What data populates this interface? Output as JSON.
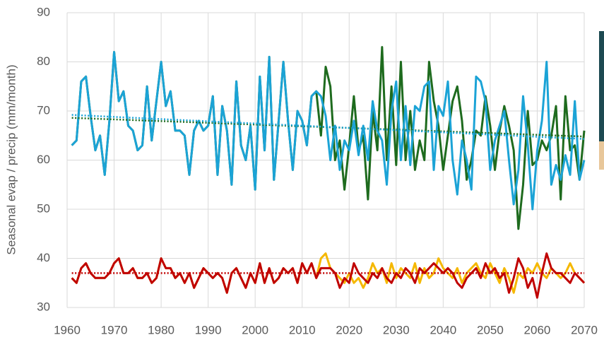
{
  "chart_data": {
    "type": "line",
    "y_label": "Seasonal evap / precip (mm/month)",
    "x": [
      1961,
      1962,
      1963,
      1964,
      1965,
      1966,
      1967,
      1968,
      1969,
      1970,
      1971,
      1972,
      1973,
      1974,
      1975,
      1976,
      1977,
      1978,
      1979,
      1980,
      1981,
      1982,
      1983,
      1984,
      1985,
      1986,
      1987,
      1988,
      1989,
      1990,
      1991,
      1992,
      1993,
      1994,
      1995,
      1996,
      1997,
      1998,
      1999,
      2000,
      2001,
      2002,
      2003,
      2004,
      2005,
      2006,
      2007,
      2008,
      2009,
      2010,
      2011,
      2012,
      2013,
      2014,
      2015,
      2016,
      2017,
      2018,
      2019,
      2020,
      2021,
      2022,
      2023,
      2024,
      2025,
      2026,
      2027,
      2028,
      2029,
      2030,
      2031,
      2032,
      2033,
      2034,
      2035,
      2036,
      2037,
      2038,
      2039,
      2040,
      2041,
      2042,
      2043,
      2044,
      2045,
      2046,
      2047,
      2048,
      2049,
      2050,
      2051,
      2052,
      2053,
      2054,
      2055,
      2056,
      2057,
      2058,
      2059,
      2060,
      2061,
      2062,
      2063,
      2064,
      2065,
      2066,
      2067,
      2068,
      2069,
      2070
    ],
    "series": [
      {
        "color": "#1e6b1e",
        "values": [
          63,
          64,
          76,
          77,
          69,
          62,
          65,
          57,
          68,
          82,
          72,
          74,
          67,
          66,
          62,
          63,
          75,
          64,
          72,
          80,
          71,
          74,
          66,
          66,
          65,
          57,
          66,
          68,
          66,
          67,
          73,
          57,
          71,
          66,
          55,
          76,
          63,
          60,
          67,
          54,
          77,
          62,
          81,
          56,
          68,
          80,
          68,
          58,
          70,
          68,
          63,
          73,
          74,
          65,
          79,
          75,
          60,
          64,
          54,
          63,
          73,
          62,
          65,
          52,
          70,
          62,
          83,
          60,
          75,
          59,
          80,
          60,
          70,
          58,
          64,
          60,
          80,
          72,
          67,
          58,
          65,
          72,
          75,
          68,
          56,
          60,
          66,
          65,
          73,
          67,
          58,
          66,
          71,
          67,
          62,
          46,
          55,
          70,
          59,
          60,
          64,
          62,
          65,
          71,
          52,
          73,
          62,
          63,
          56,
          66
        ]
      },
      {
        "color": "#1ba3d6",
        "values": [
          63,
          64,
          76,
          77,
          69,
          62,
          65,
          57,
          68,
          82,
          72,
          74,
          67,
          66,
          62,
          63,
          75,
          64,
          72,
          80,
          71,
          74,
          66,
          66,
          65,
          57,
          66,
          68,
          66,
          67,
          73,
          57,
          71,
          66,
          55,
          76,
          63,
          60,
          67,
          54,
          77,
          62,
          81,
          56,
          68,
          80,
          68,
          58,
          70,
          68,
          63,
          73,
          74,
          73,
          69,
          60,
          67,
          58,
          64,
          62,
          68,
          61,
          67,
          60,
          72,
          66,
          64,
          55,
          70,
          76,
          60,
          71,
          59,
          71,
          70,
          75,
          76,
          58,
          71,
          69,
          76,
          60,
          53,
          64,
          60,
          54,
          77,
          76,
          72,
          58,
          64,
          67,
          70,
          60,
          51,
          58,
          73,
          63,
          50,
          62,
          68,
          80,
          55,
          59,
          56,
          61,
          57,
          72,
          56,
          60
        ]
      },
      {
        "color": "#f5b800",
        "values": [
          36,
          35,
          38,
          39,
          37,
          36,
          36,
          36,
          37,
          39,
          40,
          37,
          37,
          38,
          36,
          36,
          37,
          35,
          36,
          40,
          38,
          38,
          36,
          37,
          35,
          37,
          34,
          36,
          38,
          37,
          36,
          37,
          36,
          33,
          37,
          38,
          36,
          34,
          37,
          35,
          39,
          35,
          38,
          35,
          36,
          38,
          37,
          38,
          35,
          39,
          37,
          39,
          36,
          40,
          41,
          38,
          37,
          36,
          35,
          37,
          35,
          36,
          34,
          36,
          39,
          37,
          38,
          35,
          39,
          36,
          38,
          37,
          36,
          39,
          35,
          38,
          36,
          37,
          40,
          38,
          37,
          36,
          38,
          35,
          37,
          38,
          39,
          37,
          36,
          39,
          37,
          35,
          38,
          36,
          33,
          37,
          36,
          38,
          37,
          39,
          37,
          36,
          38,
          37,
          36,
          37,
          39,
          37,
          36,
          35
        ]
      },
      {
        "color": "#c00000",
        "values": [
          36,
          35,
          38,
          39,
          37,
          36,
          36,
          36,
          37,
          39,
          40,
          37,
          37,
          38,
          36,
          36,
          37,
          35,
          36,
          40,
          38,
          38,
          36,
          37,
          35,
          37,
          34,
          36,
          38,
          37,
          36,
          37,
          36,
          33,
          37,
          38,
          36,
          34,
          37,
          35,
          39,
          35,
          38,
          35,
          36,
          38,
          37,
          38,
          35,
          39,
          37,
          39,
          36,
          38,
          38,
          38,
          37,
          34,
          36,
          35,
          39,
          37,
          36,
          35,
          37,
          36,
          38,
          36,
          35,
          37,
          36,
          38,
          37,
          35,
          38,
          37,
          38,
          39,
          38,
          37,
          38,
          37,
          35,
          34,
          36,
          37,
          38,
          36,
          39,
          37,
          38,
          36,
          37,
          33,
          36,
          40,
          38,
          34,
          36,
          32,
          37,
          41,
          38,
          37,
          37,
          36,
          35,
          37,
          36,
          35
        ]
      }
    ],
    "trendlines": [
      {
        "color": "#1e6b1e",
        "x": [
          1961,
          2070
        ],
        "values": [
          68.6,
          64.8
        ]
      },
      {
        "color": "#1ba3d6",
        "x": [
          1961,
          2070
        ],
        "values": [
          69.2,
          64.3
        ]
      },
      {
        "color": "#c00000",
        "x": [
          1961,
          2070
        ],
        "values": [
          37,
          37
        ]
      }
    ],
    "xlim": [
      1960,
      2070
    ],
    "xticks": [
      1960,
      1970,
      1980,
      1990,
      2000,
      2010,
      2020,
      2030,
      2040,
      2050,
      2060,
      2070
    ],
    "ylim": [
      30,
      90
    ],
    "yticks": [
      30,
      40,
      50,
      60,
      70,
      80,
      90
    ],
    "grid": true
  }
}
